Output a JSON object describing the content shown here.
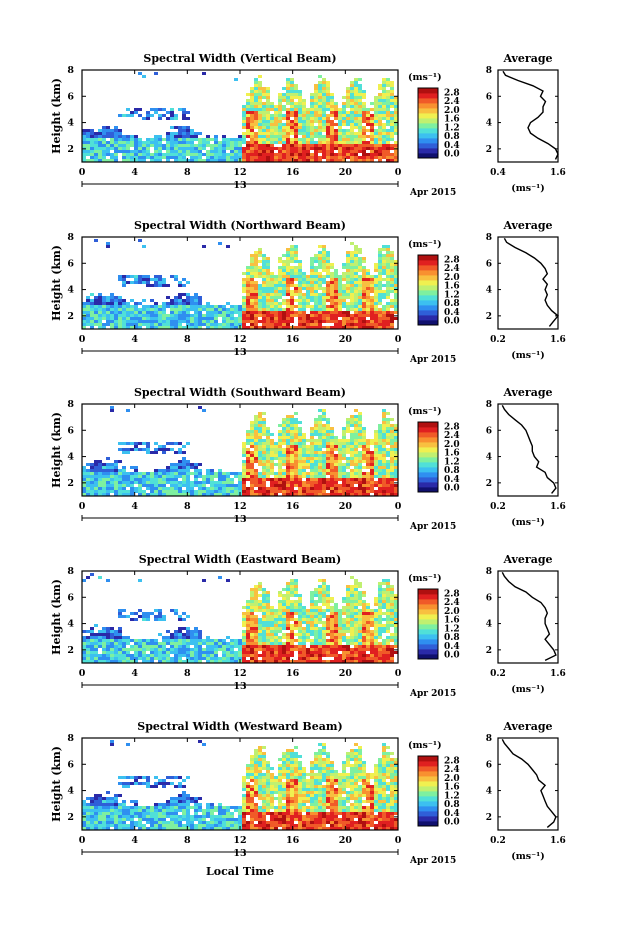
{
  "figure": {
    "date_label": "Apr 2015",
    "day_label": "13",
    "x_axis_label": "Local Time",
    "y_axis_label": "Height (km)",
    "colorbar_unit": "(ms⁻¹)",
    "average_title": "Average",
    "average_xlabel": "(ms⁻¹)"
  },
  "colors": {
    "colormap": [
      "#10106e",
      "#2a2aa8",
      "#2f5fd8",
      "#2f8ff0",
      "#3cc0f0",
      "#50e0d8",
      "#7ef0a0",
      "#c0f070",
      "#f0f050",
      "#f8c040",
      "#f89030",
      "#f05a28",
      "#e02020",
      "#b01010"
    ],
    "axis": "#000000",
    "background": "#ffffff"
  },
  "chart_data": [
    {
      "type": "heatmap",
      "title": "Spectral Width (Vertical Beam)",
      "xlabel": "Local Time",
      "ylabel": "Height (km)",
      "x_ticks": [
        "0",
        "4",
        "8",
        "12",
        "16",
        "20",
        "0"
      ],
      "y_ticks": [
        "2",
        "4",
        "6",
        "8"
      ],
      "xlim": [
        0,
        24
      ],
      "ylim": [
        1,
        8
      ],
      "colorbar": {
        "label": "(ms⁻¹)",
        "ticks": [
          "0.0",
          "0.4",
          "0.8",
          "1.2",
          "1.6",
          "2.0",
          "2.4",
          "2.8"
        ],
        "range": [
          0,
          3.0
        ]
      },
      "average_profile": {
        "title": "Average",
        "xlabel": "(ms⁻¹)",
        "x_ticks": [
          "0.4",
          "1.6"
        ],
        "xlim": [
          0.4,
          1.6
        ],
        "y_ticks": [
          "2",
          "4",
          "6",
          "8"
        ],
        "ylim": [
          1,
          8
        ],
        "height_km": [
          1.2,
          1.6,
          2.0,
          2.4,
          2.8,
          3.2,
          3.6,
          4.0,
          4.4,
          4.8,
          5.2,
          5.6,
          6.0,
          6.4,
          6.8,
          7.2,
          7.6,
          7.9
        ],
        "width_ms": [
          1.55,
          1.6,
          1.55,
          1.4,
          1.2,
          1.05,
          1.0,
          1.05,
          1.2,
          1.3,
          1.3,
          1.35,
          1.25,
          1.3,
          1.1,
          0.8,
          0.55,
          0.5
        ]
      }
    },
    {
      "type": "heatmap",
      "title": "Spectral Width (Northward Beam)",
      "xlabel": "Local Time",
      "ylabel": "Height (km)",
      "x_ticks": [
        "0",
        "4",
        "8",
        "12",
        "16",
        "20",
        "0"
      ],
      "y_ticks": [
        "2",
        "4",
        "6",
        "8"
      ],
      "xlim": [
        0,
        24
      ],
      "ylim": [
        1,
        8
      ],
      "colorbar": {
        "label": "(ms⁻¹)",
        "ticks": [
          "0.0",
          "0.4",
          "0.8",
          "1.2",
          "1.6",
          "2.0",
          "2.4",
          "2.8"
        ],
        "range": [
          0,
          3.0
        ]
      },
      "average_profile": {
        "title": "Average",
        "xlabel": "(ms⁻¹)",
        "x_ticks": [
          "0.2",
          "1.6"
        ],
        "xlim": [
          0.2,
          1.6
        ],
        "y_ticks": [
          "2",
          "4",
          "6",
          "8"
        ],
        "ylim": [
          1,
          8
        ],
        "height_km": [
          1.2,
          1.6,
          2.0,
          2.4,
          2.8,
          3.2,
          3.6,
          4.0,
          4.4,
          4.8,
          5.2,
          5.6,
          6.0,
          6.4,
          6.8,
          7.2,
          7.6,
          7.9
        ],
        "width_ms": [
          1.4,
          1.5,
          1.6,
          1.45,
          1.35,
          1.3,
          1.35,
          1.3,
          1.35,
          1.25,
          1.35,
          1.3,
          1.2,
          1.05,
          0.85,
          0.6,
          0.4,
          0.35
        ]
      }
    },
    {
      "type": "heatmap",
      "title": "Spectral Width (Southward Beam)",
      "xlabel": "Local Time",
      "ylabel": "Height (km)",
      "x_ticks": [
        "0",
        "4",
        "8",
        "12",
        "16",
        "20",
        "0"
      ],
      "y_ticks": [
        "2",
        "4",
        "6",
        "8"
      ],
      "xlim": [
        0,
        24
      ],
      "ylim": [
        1,
        8
      ],
      "colorbar": {
        "label": "(ms⁻¹)",
        "ticks": [
          "0.0",
          "0.4",
          "0.8",
          "1.2",
          "1.6",
          "2.0",
          "2.4",
          "2.8"
        ],
        "range": [
          0,
          3.0
        ]
      },
      "average_profile": {
        "title": "Average",
        "xlabel": "(ms⁻¹)",
        "x_ticks": [
          "0.2",
          "1.6"
        ],
        "xlim": [
          0.2,
          1.6
        ],
        "y_ticks": [
          "2",
          "4",
          "6",
          "8"
        ],
        "ylim": [
          1,
          8
        ],
        "height_km": [
          1.2,
          1.6,
          2.0,
          2.4,
          2.8,
          3.2,
          3.6,
          4.0,
          4.4,
          4.8,
          5.2,
          5.6,
          6.0,
          6.4,
          6.8,
          7.2,
          7.6,
          7.9
        ],
        "width_ms": [
          1.45,
          1.55,
          1.5,
          1.35,
          1.3,
          1.1,
          1.15,
          1.05,
          1.0,
          1.0,
          0.95,
          0.9,
          0.85,
          0.75,
          0.6,
          0.45,
          0.35,
          0.3
        ]
      }
    },
    {
      "type": "heatmap",
      "title": "Spectral Width (Eastward Beam)",
      "xlabel": "Local Time",
      "ylabel": "Height (km)",
      "x_ticks": [
        "0",
        "4",
        "8",
        "12",
        "16",
        "20",
        "0"
      ],
      "y_ticks": [
        "2",
        "4",
        "6",
        "8"
      ],
      "xlim": [
        0,
        24
      ],
      "ylim": [
        1,
        8
      ],
      "colorbar": {
        "label": "(ms⁻¹)",
        "ticks": [
          "0.0",
          "0.4",
          "0.8",
          "1.2",
          "1.6",
          "2.0",
          "2.4",
          "2.8"
        ],
        "range": [
          0,
          3.0
        ]
      },
      "average_profile": {
        "title": "Average",
        "xlabel": "(ms⁻¹)",
        "x_ticks": [
          "0.2",
          "1.6"
        ],
        "xlim": [
          0.2,
          1.6
        ],
        "y_ticks": [
          "2",
          "4",
          "6",
          "8"
        ],
        "ylim": [
          1,
          8
        ],
        "height_km": [
          1.2,
          1.6,
          2.0,
          2.4,
          2.8,
          3.2,
          3.6,
          4.0,
          4.4,
          4.8,
          5.2,
          5.6,
          6.0,
          6.4,
          6.8,
          7.2,
          7.6,
          7.9
        ],
        "width_ms": [
          1.3,
          1.55,
          1.5,
          1.4,
          1.3,
          1.4,
          1.35,
          1.3,
          1.3,
          1.35,
          1.3,
          1.2,
          1.0,
          0.85,
          0.6,
          0.45,
          0.35,
          0.3
        ]
      }
    },
    {
      "type": "heatmap",
      "title": "Spectral Width (Westward Beam)",
      "xlabel": "Local Time",
      "ylabel": "Height (km)",
      "x_ticks": [
        "0",
        "4",
        "8",
        "12",
        "16",
        "20",
        "0"
      ],
      "y_ticks": [
        "2",
        "4",
        "6",
        "8"
      ],
      "xlim": [
        0,
        24
      ],
      "ylim": [
        1,
        8
      ],
      "colorbar": {
        "label": "(ms⁻¹)",
        "ticks": [
          "0.0",
          "0.4",
          "0.8",
          "1.2",
          "1.6",
          "2.0",
          "2.4",
          "2.8"
        ],
        "range": [
          0,
          3.0
        ]
      },
      "average_profile": {
        "title": "Average",
        "xlabel": "(ms⁻¹)",
        "x_ticks": [
          "0.2",
          "1.6"
        ],
        "xlim": [
          0.2,
          1.6
        ],
        "y_ticks": [
          "2",
          "4",
          "6",
          "8"
        ],
        "ylim": [
          1,
          8
        ],
        "height_km": [
          1.2,
          1.6,
          2.0,
          2.4,
          2.8,
          3.2,
          3.6,
          4.0,
          4.4,
          4.8,
          5.2,
          5.6,
          6.0,
          6.4,
          6.8,
          7.2,
          7.6,
          7.9
        ],
        "width_ms": [
          1.35,
          1.5,
          1.55,
          1.45,
          1.35,
          1.3,
          1.25,
          1.2,
          1.3,
          1.15,
          1.1,
          1.0,
          0.9,
          0.75,
          0.55,
          0.45,
          0.35,
          0.3
        ]
      }
    }
  ]
}
